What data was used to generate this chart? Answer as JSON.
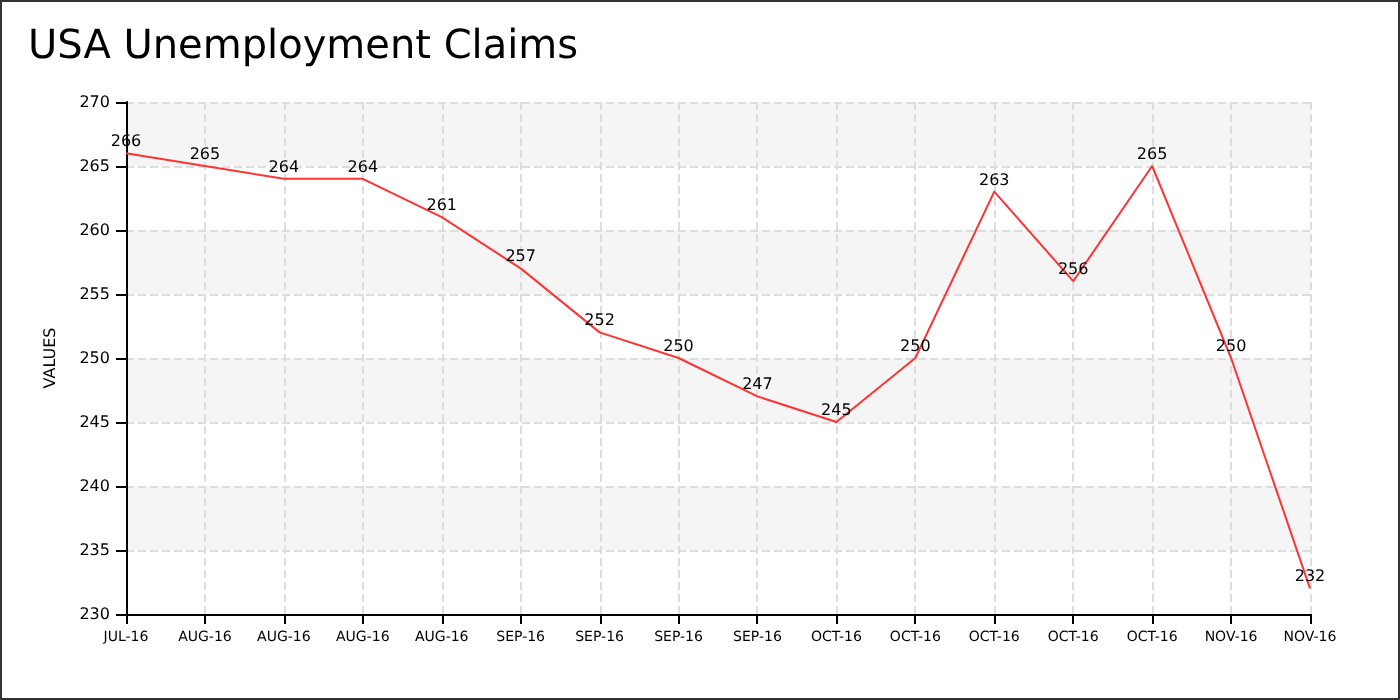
{
  "chart_data": {
    "type": "line",
    "title": "USA Unemployment Claims",
    "ylabel": "VALUES",
    "categories": [
      "JUL-16",
      "AUG-16",
      "AUG-16",
      "AUG-16",
      "AUG-16",
      "SEP-16",
      "SEP-16",
      "SEP-16",
      "SEP-16",
      "OCT-16",
      "OCT-16",
      "OCT-16",
      "OCT-16",
      "OCT-16",
      "NOV-16",
      "NOV-16"
    ],
    "series": [
      {
        "color": "#ff3333",
        "values": [
          266,
          265,
          264,
          264,
          261,
          257,
          252,
          250,
          247,
          245,
          250,
          263,
          256,
          265,
          250,
          232
        ]
      }
    ],
    "ylim": [
      230,
      270
    ],
    "yticks": [
      230,
      235,
      240,
      245,
      250,
      255,
      260,
      265,
      270
    ],
    "grid": true,
    "data_labels": true,
    "marker": "none",
    "line_style": "solid"
  }
}
